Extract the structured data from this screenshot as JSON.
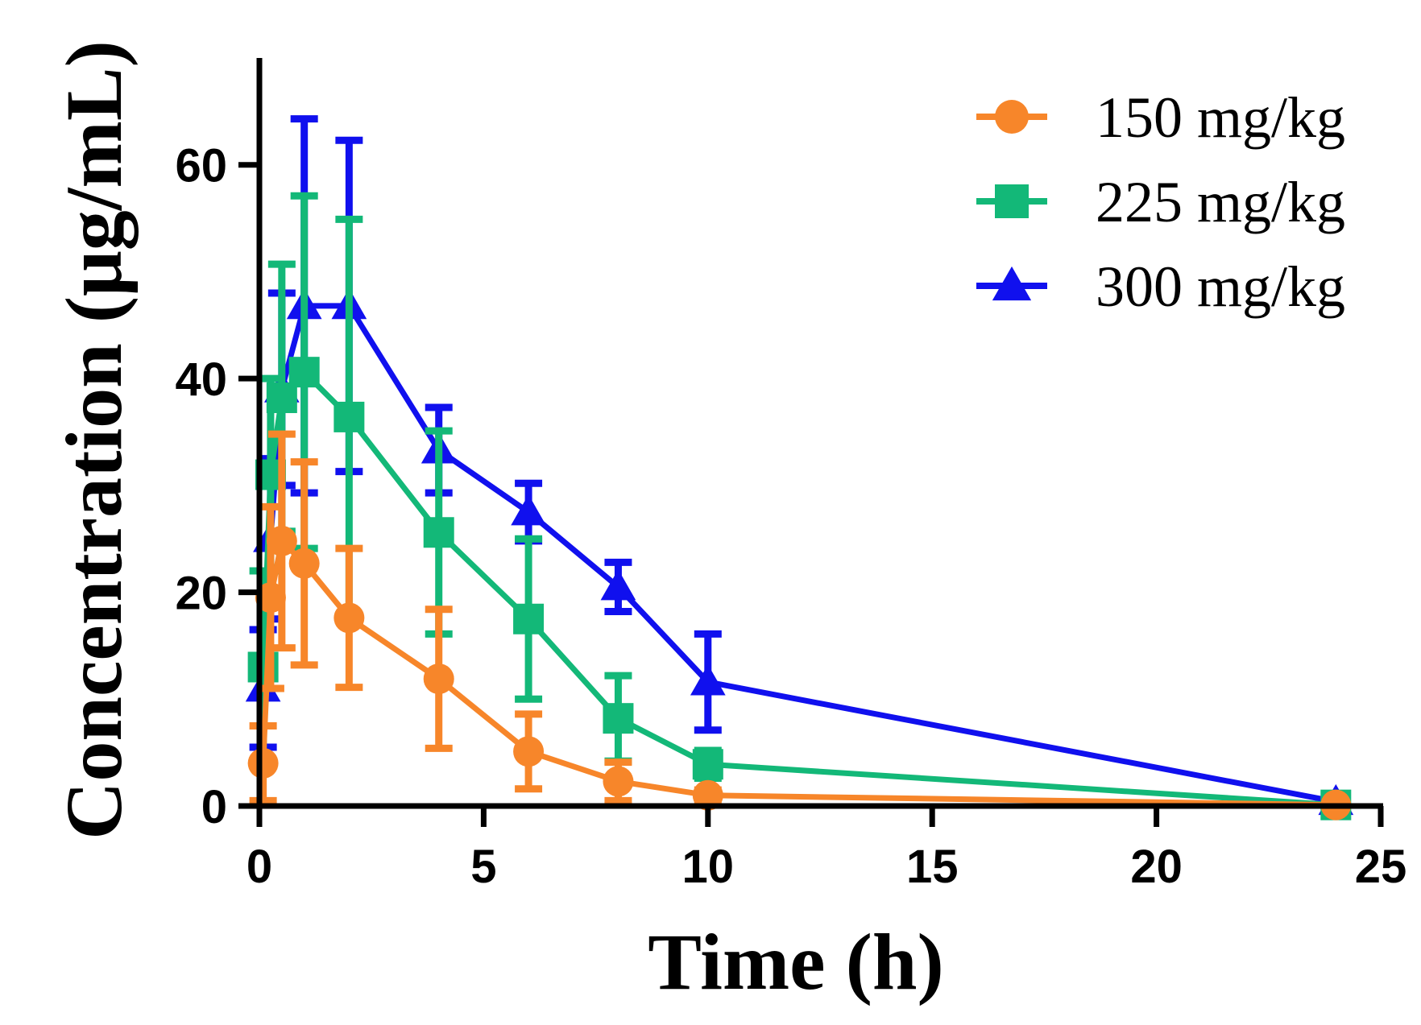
{
  "chart_data": {
    "type": "line",
    "title": "",
    "xlabel": "Time (h)",
    "ylabel": "Concentration (μg/mL)",
    "xlim": [
      0,
      25
    ],
    "ylim": [
      0,
      70
    ],
    "xticks": [
      0,
      5,
      10,
      15,
      20,
      25
    ],
    "yticks": [
      0,
      20,
      40,
      60
    ],
    "xtick_labels": [
      "0",
      "5",
      "10",
      "15",
      "20",
      "25"
    ],
    "ytick_labels": [
      "0",
      "20",
      "40",
      "60"
    ],
    "grid": false,
    "legend_position": "top-right",
    "series": [
      {
        "name": "150 mg/kg",
        "color": "#F7862A",
        "marker": "circle",
        "x": [
          0.083,
          0.25,
          0.5,
          1,
          2,
          4,
          6,
          8,
          10,
          24
        ],
        "y": [
          4.0,
          19.5,
          24.8,
          22.7,
          17.6,
          11.9,
          5.1,
          2.3,
          1.0,
          0.1
        ],
        "error": [
          3.5,
          8.5,
          10.0,
          9.5,
          6.5,
          6.5,
          3.5,
          1.8,
          0.5,
          0.1
        ]
      },
      {
        "name": "225 mg/kg",
        "color": "#13B878",
        "marker": "square",
        "x": [
          0.083,
          0.25,
          0.5,
          1,
          2,
          4,
          6,
          8,
          10,
          24
        ],
        "y": [
          13.0,
          31.0,
          38.2,
          40.6,
          36.4,
          25.6,
          17.5,
          8.2,
          3.9,
          0.1
        ],
        "error": [
          9.0,
          9.0,
          12.5,
          16.5,
          18.5,
          9.5,
          7.5,
          4.0,
          1.3,
          0.1
        ]
      },
      {
        "name": "300 mg/kg",
        "color": "#1010EE",
        "marker": "triangle",
        "x": [
          0.083,
          0.25,
          0.5,
          1,
          2,
          4,
          6,
          8,
          10,
          24
        ],
        "y": [
          11.0,
          25.0,
          39.0,
          46.8,
          46.8,
          33.3,
          27.5,
          20.5,
          11.6,
          0.4
        ],
        "error": [
          5.5,
          7.5,
          9.0,
          17.5,
          15.5,
          4.0,
          2.7,
          2.3,
          4.5,
          0.2
        ]
      }
    ]
  }
}
